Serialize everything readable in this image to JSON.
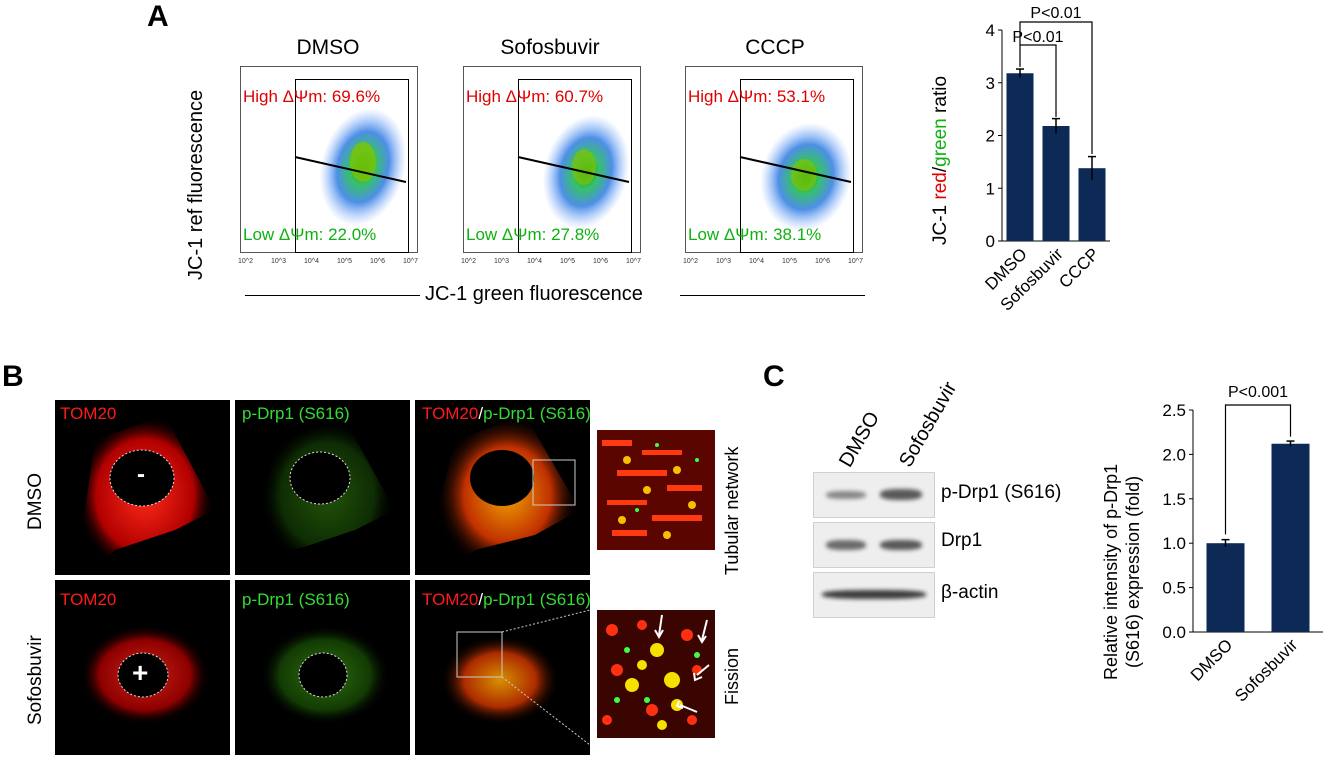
{
  "panel_letters": {
    "a": "A",
    "b": "B",
    "c": "C"
  },
  "panel_a": {
    "flow": {
      "y_axis_label": "JC-1 ref fluorescence",
      "x_axis_label": "JC-1 green fluorescence",
      "tick_labels": [
        "10^2",
        "10^3",
        "10^4",
        "10^5",
        "10^6",
        "10^7"
      ],
      "plots": [
        {
          "title": "DMSO",
          "high": "High ΔΨm: 69.6%",
          "low": "Low ΔΨm: 22.0%"
        },
        {
          "title": "Sofosbuvir",
          "high": "High ΔΨm: 60.7%",
          "low": "Low ΔΨm: 27.8%"
        },
        {
          "title": "CCCP",
          "high": "High ΔΨm: 53.1%",
          "low": "Low ΔΨm: 38.1%"
        }
      ]
    },
    "bar_chart": {
      "ylabel_prefix": "JC-1 ",
      "ylabel_red": "red",
      "ylabel_sep": "/",
      "ylabel_green": "green",
      "ylabel_suffix": " ratio",
      "sig_outer": "P<0.01",
      "sig_inner": "P<0.01",
      "y_ticks": [
        "0",
        "1",
        "2",
        "3",
        "4"
      ]
    }
  },
  "panel_b": {
    "col_labels": {
      "tom20": "TOM20",
      "pdrp1": "p-Drp1 (S616)",
      "slash": "/"
    },
    "row_labels": [
      "DMSO",
      "Sofosbuvir"
    ],
    "side_labels": [
      "Tubular network",
      "Fission"
    ],
    "nucleus_marks": [
      "-",
      "+"
    ]
  },
  "panel_c": {
    "blot_lanes": [
      "DMSO",
      "Sofosbuvir"
    ],
    "blot_rows": [
      "p-Drp1 (S616)",
      "Drp1",
      "β-actin"
    ],
    "bar_chart": {
      "ylabel_line1": "Relative intensity of p-Drp1",
      "ylabel_line2": "(S616) expression (fold)",
      "sig": "P<0.001",
      "y_ticks": [
        "0.0",
        "0.5",
        "1.0",
        "1.5",
        "2.0",
        "2.5"
      ]
    }
  },
  "colors": {
    "bar": "#0d2a56",
    "red_text": "#e00000",
    "green_text": "#10b010"
  },
  "chart_data": [
    {
      "type": "bar",
      "categories": [
        "DMSO",
        "Sofosbuvir",
        "CCCP"
      ],
      "values": [
        3.18,
        2.18,
        1.38
      ],
      "errors": [
        0.08,
        0.14,
        0.22
      ],
      "ylabel": "JC-1 red/green ratio",
      "ylim": [
        0,
        4
      ]
    },
    {
      "type": "bar",
      "categories": [
        "DMSO",
        "Sofosbuvir"
      ],
      "values": [
        1.0,
        2.12
      ],
      "errors": [
        0.04,
        0.03
      ],
      "ylabel": "Relative intensity of p-Drp1 (S616) expression (fold)",
      "ylim": [
        0,
        2.5
      ]
    }
  ]
}
